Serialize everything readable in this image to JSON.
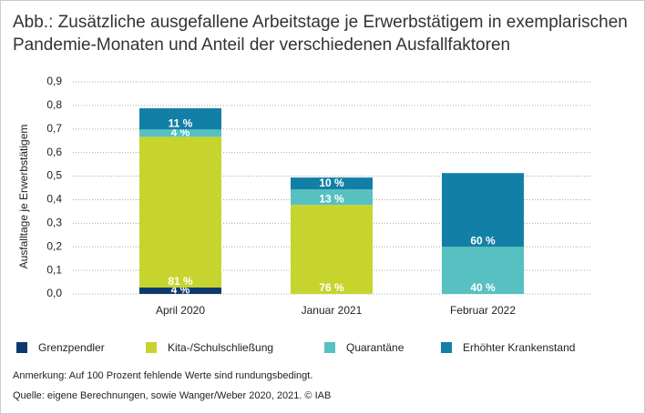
{
  "chart_data": {
    "type": "stacked_bar",
    "title": "Abb.: Zusätzliche ausgefallene Arbeitstage je Erwerbstätigem in exemplarischen",
    "subtitle": "Pandemie-Monaten und Anteil der verschiedenen Ausfallfaktoren",
    "y_label": "Ausfalltage je Erwerbstätigem",
    "categories": [
      "April 2020",
      "Januar 2021",
      "Februar 2022"
    ],
    "series": [
      {
        "name": "Grenzpendler",
        "color": "#0d3a6e",
        "values": [
          0.027,
          0,
          0
        ],
        "share_labels": [
          "4 %",
          null,
          null
        ]
      },
      {
        "name": "Kita-/Schulschließung",
        "color": "#c8d42e",
        "values": [
          0.64,
          0.378,
          0
        ],
        "share_labels": [
          "81 %",
          "76 %",
          null
        ]
      },
      {
        "name": "Quarantäne",
        "color": "#57c0c0",
        "values": [
          0.031,
          0.066,
          0.2
        ],
        "share_labels": [
          "4 %",
          "13 %",
          "40 %"
        ]
      },
      {
        "name": "Erhöhter Krankenstand",
        "color": "#127fa6",
        "values": [
          0.09,
          0.05,
          0.313
        ],
        "share_labels": [
          "11 %",
          "10 %",
          "60 %"
        ]
      }
    ],
    "ylim": [
      0,
      0.9
    ],
    "yticks": [
      {
        "value": 0,
        "label": "0,0"
      },
      {
        "value": 0.1,
        "label": "0,1"
      },
      {
        "value": 0.2,
        "label": "0,2"
      },
      {
        "value": 0.3,
        "label": "0,3"
      },
      {
        "value": 0.4,
        "label": "0,4"
      },
      {
        "value": 0.5,
        "label": "0,5"
      },
      {
        "value": 0.6,
        "label": "0,6"
      },
      {
        "value": 0.7,
        "label": "0,7"
      },
      {
        "value": 0.8,
        "label": "0,8"
      },
      {
        "value": 0.9,
        "label": "0,9"
      }
    ],
    "grid": true,
    "notes": [
      "Anmerkung: Auf 100 Prozent fehlende Werte sind rundungsbedingt.",
      "Quelle: eigene Berechnungen, sowie Wanger/Weber 2020, 2021. © IAB"
    ]
  }
}
